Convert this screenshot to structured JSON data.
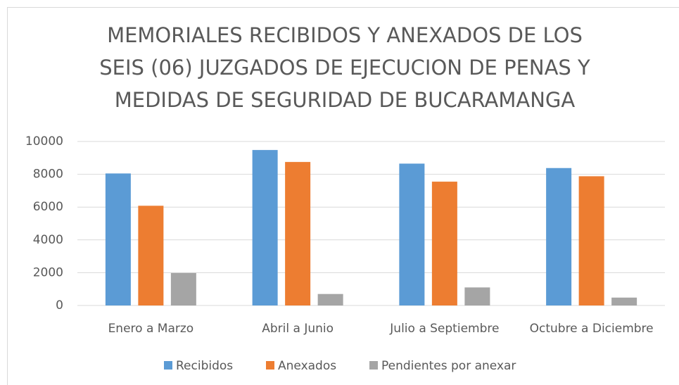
{
  "chart_data": {
    "type": "bar",
    "title": [
      "MEMORIALES RECIBIDOS Y ANEXADOS DE LOS",
      "SEIS (06) JUZGADOS DE EJECUCION DE PENAS Y",
      "MEDIDAS DE SEGURIDAD DE BUCARAMANGA"
    ],
    "categories": [
      "Enero a Marzo",
      "Abril a Junio",
      "Julio a Septiembre",
      "Octubre a Diciembre"
    ],
    "series": [
      {
        "name": "Recibidos",
        "color": "#5b9bd5",
        "values": [
          8050,
          9480,
          8650,
          8380
        ]
      },
      {
        "name": "Anexados",
        "color": "#ed7d31",
        "values": [
          6080,
          8750,
          7550,
          7880
        ]
      },
      {
        "name": "Pendientes por anexar",
        "color": "#a5a5a5",
        "values": [
          1980,
          700,
          1100,
          480
        ]
      }
    ],
    "ylim": [
      0,
      10000
    ],
    "yticks": [
      0,
      2000,
      4000,
      6000,
      8000,
      10000
    ],
    "grid": true,
    "legend": "bottom"
  }
}
